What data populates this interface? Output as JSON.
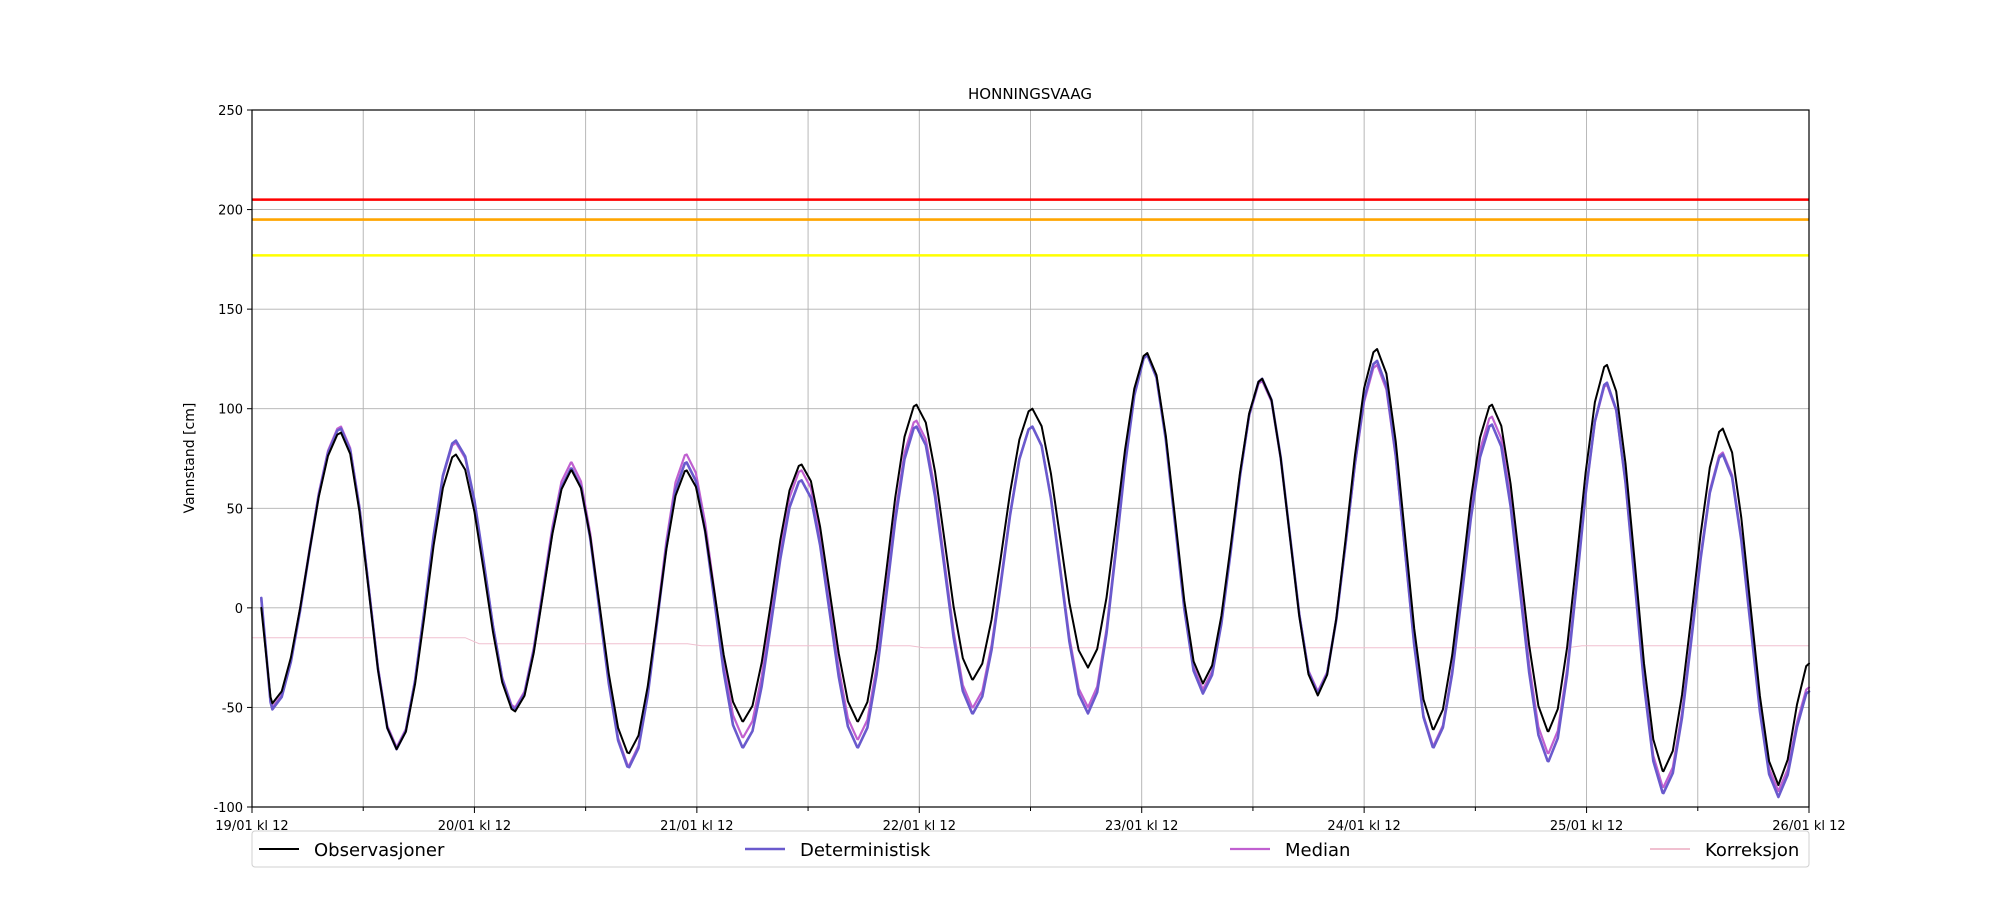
{
  "chart_data": {
    "type": "line",
    "title": "HONNINGSVAAG",
    "ylabel": "Vannstand [cm]",
    "xlabel": "",
    "ylim": [
      -100,
      250
    ],
    "yticks": [
      -100,
      -50,
      0,
      50,
      100,
      150,
      200,
      250
    ],
    "xlim_hours": [
      0,
      168
    ],
    "xticks": [
      {
        "h": 0,
        "label": "19/01 kl 12"
      },
      {
        "h": 24,
        "label": "20/01 kl 12"
      },
      {
        "h": 48,
        "label": "21/01 kl 12"
      },
      {
        "h": 72,
        "label": "22/01 kl 12"
      },
      {
        "h": 96,
        "label": "23/01 kl 12"
      },
      {
        "h": 120,
        "label": "24/01 kl 12"
      },
      {
        "h": 144,
        "label": "25/01 kl 12"
      },
      {
        "h": 168,
        "label": "26/01 kl 12"
      }
    ],
    "minor_ticks_hours": [
      12,
      36,
      60,
      84,
      108,
      132,
      156
    ],
    "grid": true,
    "legend_position": "bottom",
    "thresholds": [
      {
        "value": 205,
        "color": "#ff0000"
      },
      {
        "value": 195,
        "color": "#ffa500"
      },
      {
        "value": 177,
        "color": "#ffff00"
      }
    ],
    "tide": {
      "period_hours": 12.42,
      "peaks": [
        {
          "h": 9.6,
          "obs": 88,
          "det": 90,
          "med": 91
        },
        {
          "h": 22.0,
          "obs": 77,
          "det": 84,
          "med": 83
        },
        {
          "h": 34.5,
          "obs": 69,
          "det": 70,
          "med": 73
        },
        {
          "h": 46.9,
          "obs": 69,
          "det": 73,
          "med": 77
        },
        {
          "h": 59.3,
          "obs": 72,
          "det": 64,
          "med": 69
        },
        {
          "h": 71.7,
          "obs": 102,
          "det": 91,
          "med": 94
        },
        {
          "h": 84.2,
          "obs": 100,
          "det": 91,
          "med": 91
        },
        {
          "h": 96.6,
          "obs": 128,
          "det": 127,
          "med": 127
        },
        {
          "h": 109.0,
          "obs": 115,
          "det": 115,
          "med": 114
        },
        {
          "h": 121.4,
          "obs": 130,
          "det": 124,
          "med": 122
        },
        {
          "h": 133.8,
          "obs": 102,
          "det": 92,
          "med": 96
        },
        {
          "h": 146.2,
          "obs": 122,
          "det": 113,
          "med": 112
        },
        {
          "h": 158.7,
          "obs": 90,
          "det": 77,
          "med": 78
        }
      ],
      "troughs": [
        {
          "h": 2.2,
          "obs": -48,
          "det": -51,
          "med": -50
        },
        {
          "h": 15.6,
          "obs": -71,
          "det": -71,
          "med": -70
        },
        {
          "h": 28.4,
          "obs": -52,
          "det": -51,
          "med": -50
        },
        {
          "h": 40.7,
          "obs": -73,
          "det": -80,
          "med": -79
        },
        {
          "h": 53.0,
          "obs": -57,
          "det": -70,
          "med": -65
        },
        {
          "h": 65.4,
          "obs": -57,
          "det": -70,
          "med": -66
        },
        {
          "h": 77.8,
          "obs": -36,
          "det": -53,
          "med": -50
        },
        {
          "h": 90.2,
          "obs": -30,
          "det": -53,
          "med": -50
        },
        {
          "h": 102.6,
          "obs": -38,
          "det": -43,
          "med": -41
        },
        {
          "h": 115.0,
          "obs": -44,
          "det": -43,
          "med": -42
        },
        {
          "h": 127.5,
          "obs": -61,
          "det": -70,
          "med": -69
        },
        {
          "h": 139.9,
          "obs": -62,
          "det": -77,
          "med": -73
        },
        {
          "h": 152.3,
          "obs": -82,
          "det": -93,
          "med": -90
        },
        {
          "h": 164.7,
          "obs": -89,
          "det": -95,
          "med": -92
        }
      ],
      "start": {
        "h": 1.0,
        "obs": 0,
        "det": 5,
        "med": 4
      },
      "end": {
        "h": 168,
        "obs": -28,
        "det": -42,
        "med": -40
      }
    },
    "correction": {
      "points": [
        {
          "h": 0,
          "v": -15
        },
        {
          "h": 23,
          "v": -15
        },
        {
          "h": 24.5,
          "v": -18
        },
        {
          "h": 47,
          "v": -18
        },
        {
          "h": 48.5,
          "v": -19
        },
        {
          "h": 71,
          "v": -19
        },
        {
          "h": 72.5,
          "v": -20
        },
        {
          "h": 142,
          "v": -20
        },
        {
          "h": 143.5,
          "v": -19
        },
        {
          "h": 168,
          "v": -19
        }
      ]
    },
    "series": [
      {
        "name": "Observasjoner",
        "key": "obs",
        "color": "#000000",
        "width": 2
      },
      {
        "name": "Deterministisk",
        "key": "det",
        "color": "#6a5acd",
        "width": 2.6
      },
      {
        "name": "Median",
        "key": "med",
        "color": "#c060d0",
        "width": 2.2
      },
      {
        "name": "Korreksjon",
        "key": "corr",
        "color": "#f0c0d0",
        "width": 1
      }
    ]
  }
}
